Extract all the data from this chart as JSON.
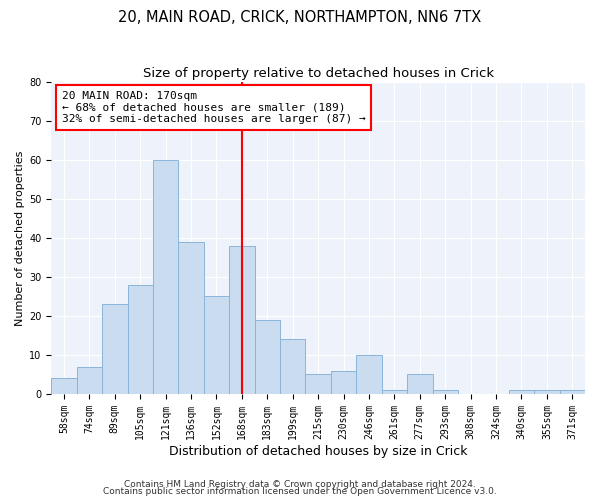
{
  "title1": "20, MAIN ROAD, CRICK, NORTHAMPTON, NN6 7TX",
  "title2": "Size of property relative to detached houses in Crick",
  "xlabel": "Distribution of detached houses by size in Crick",
  "ylabel": "Number of detached properties",
  "categories": [
    "58sqm",
    "74sqm",
    "89sqm",
    "105sqm",
    "121sqm",
    "136sqm",
    "152sqm",
    "168sqm",
    "183sqm",
    "199sqm",
    "215sqm",
    "230sqm",
    "246sqm",
    "261sqm",
    "277sqm",
    "293sqm",
    "308sqm",
    "324sqm",
    "340sqm",
    "355sqm",
    "371sqm"
  ],
  "values": [
    4,
    7,
    23,
    28,
    60,
    39,
    25,
    38,
    19,
    14,
    5,
    6,
    10,
    1,
    5,
    1,
    0,
    0,
    1,
    1,
    1
  ],
  "bar_color": "#c9dcf0",
  "bar_edge_color": "#8ab4d8",
  "vline_index": 7,
  "vline_color": "red",
  "annotation_line1": "20 MAIN ROAD: 170sqm",
  "annotation_line2": "← 68% of detached houses are smaller (189)",
  "annotation_line3": "32% of semi-detached houses are larger (87) →",
  "annotation_box_color": "white",
  "annotation_box_edge": "red",
  "ylim": [
    0,
    80
  ],
  "yticks": [
    0,
    10,
    20,
    30,
    40,
    50,
    60,
    70,
    80
  ],
  "bg_color": "#eef2fb",
  "title1_fontsize": 10.5,
  "title2_fontsize": 9.5,
  "xlabel_fontsize": 9,
  "ylabel_fontsize": 8,
  "tick_fontsize": 7,
  "annotation_fontsize": 8,
  "footnote1": "Contains HM Land Registry data © Crown copyright and database right 2024.",
  "footnote2": "Contains public sector information licensed under the Open Government Licence v3.0."
}
